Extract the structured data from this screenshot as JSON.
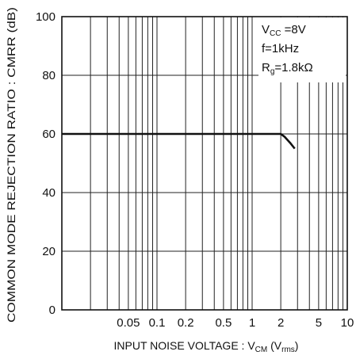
{
  "chart_data": {
    "type": "line",
    "xscale": "log",
    "xlim": [
      0.01,
      10
    ],
    "ylim": [
      0,
      100
    ],
    "grid": true,
    "x_ticks": [
      {
        "value": 0.05,
        "label": "0.05"
      },
      {
        "value": 0.1,
        "label": "0.1"
      },
      {
        "value": 0.2,
        "label": "0.2"
      },
      {
        "value": 0.5,
        "label": "0.5"
      },
      {
        "value": 1,
        "label": "1"
      },
      {
        "value": 2,
        "label": "2"
      },
      {
        "value": 5,
        "label": "5"
      },
      {
        "value": 10,
        "label": "10"
      }
    ],
    "y_ticks": [
      {
        "value": 0,
        "label": "0"
      },
      {
        "value": 20,
        "label": "20"
      },
      {
        "value": 40,
        "label": "40"
      },
      {
        "value": 60,
        "label": "60"
      },
      {
        "value": 80,
        "label": "80"
      },
      {
        "value": 100,
        "label": "100"
      }
    ],
    "xlabel": {
      "main": "INPUT NOISE VOLTAGE : V",
      "sub": "CM",
      "tail": " (V",
      "tail_sub": "rms",
      "end": ")"
    },
    "ylabel": "COMMON MODE REJECTION RATIO : CMRR (dB)",
    "annotations": [
      {
        "parts": [
          {
            "t": "V"
          },
          {
            "t": "CC",
            "sub": true
          },
          {
            "t": " =8V"
          }
        ]
      },
      {
        "parts": [
          {
            "t": "f=1kHz"
          }
        ]
      },
      {
        "parts": [
          {
            "t": "R"
          },
          {
            "t": "g",
            "sub": true
          },
          {
            "t": "=1.8kΩ"
          }
        ]
      }
    ],
    "series": [
      {
        "x": [
          0.01,
          0.1,
          1,
          2.0,
          2.2,
          2.5,
          2.8
        ],
        "y": [
          60,
          60,
          60,
          60,
          59,
          57,
          55
        ]
      }
    ]
  }
}
